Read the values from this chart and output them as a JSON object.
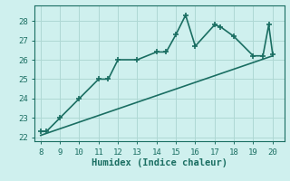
{
  "xlabel": "Humidex (Indice chaleur)",
  "bg_color": "#cff0ee",
  "line_color": "#1a6e62",
  "grid_color": "#aed8d4",
  "x_data": [
    8,
    8.3,
    9,
    10,
    11,
    11.5,
    12,
    13,
    14,
    14.5,
    15,
    15.5,
    16,
    17,
    17.3,
    18,
    19,
    19.5,
    19.8,
    20
  ],
  "y_data": [
    22.3,
    22.3,
    23.0,
    24.0,
    25.0,
    25.0,
    26.0,
    26.0,
    26.4,
    26.4,
    27.3,
    28.3,
    26.7,
    27.8,
    27.7,
    27.2,
    26.2,
    26.2,
    27.8,
    26.3
  ],
  "trend_x": [
    8,
    20
  ],
  "trend_y": [
    22.1,
    26.2
  ],
  "xlim": [
    7.7,
    20.6
  ],
  "ylim": [
    21.8,
    28.8
  ],
  "xticks": [
    8,
    9,
    10,
    11,
    12,
    13,
    14,
    15,
    16,
    17,
    18,
    19,
    20
  ],
  "yticks": [
    22,
    23,
    24,
    25,
    26,
    27,
    28
  ],
  "marker": "+",
  "marker_size": 5,
  "line_width": 1.2,
  "tick_fontsize": 6.5,
  "xlabel_fontsize": 7.5
}
